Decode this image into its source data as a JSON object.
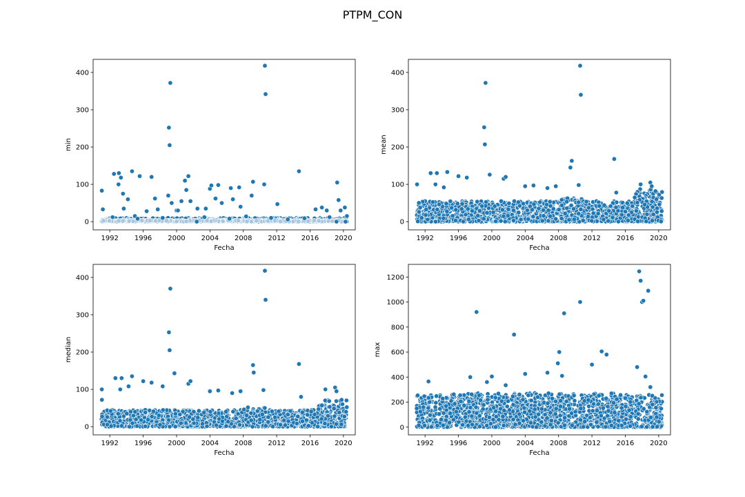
{
  "figure": {
    "title": "PTPM_CON"
  },
  "colors": {
    "point": "#1f77b4",
    "point_edge": "#ffffff",
    "axes": "#000000",
    "background": "#ffffff"
  },
  "chart_data": [
    {
      "type": "scatter",
      "xlabel": "Fecha",
      "ylabel": "min",
      "xlim": [
        "1990-01-01",
        "2021-06-01"
      ],
      "ylim": [
        -22,
        435
      ],
      "xticks": [
        "1992",
        "1996",
        "2000",
        "2004",
        "2008",
        "2012",
        "2016",
        "2020"
      ],
      "yticks": [
        0,
        100,
        200,
        300,
        400
      ],
      "grid": false,
      "series": [
        {
          "points": [
            [
              "1991-01-15",
              83
            ],
            [
              "1991-03-01",
              33
            ],
            [
              "1992-07-01",
              128
            ],
            [
              "1993-02-01",
              130
            ],
            [
              "1993-05-01",
              118
            ],
            [
              "1993-01-15",
              100
            ],
            [
              "1993-08-01",
              75
            ],
            [
              "1993-09-01",
              35
            ],
            [
              "1994-03-01",
              60
            ],
            [
              "1994-09-01",
              135
            ],
            [
              "1995-01-01",
              15
            ],
            [
              "1995-08-01",
              122
            ],
            [
              "1996-06-01",
              28
            ],
            [
              "1997-01-01",
              120
            ],
            [
              "1997-06-01",
              62
            ],
            [
              "1997-10-01",
              33
            ],
            [
              "1999-01-01",
              70
            ],
            [
              "1999-02-01",
              252
            ],
            [
              "1999-03-01",
              205
            ],
            [
              "1999-04-01",
              372
            ],
            [
              "1999-06-01",
              50
            ],
            [
              "2000-01-01",
              30
            ],
            [
              "2000-03-01",
              30
            ],
            [
              "2000-08-01",
              55
            ],
            [
              "2001-01-01",
              110
            ],
            [
              "2001-03-01",
              85
            ],
            [
              "2001-06-01",
              122
            ],
            [
              "2001-09-01",
              55
            ],
            [
              "2002-07-01",
              35
            ],
            [
              "2003-07-01",
              35
            ],
            [
              "2004-01-01",
              88
            ],
            [
              "2004-03-01",
              97
            ],
            [
              "2004-09-01",
              62
            ],
            [
              "2005-01-01",
              98
            ],
            [
              "2005-06-01",
              50
            ],
            [
              "2006-07-01",
              90
            ],
            [
              "2006-10-01",
              60
            ],
            [
              "2007-07-01",
              92
            ],
            [
              "2007-09-01",
              40
            ],
            [
              "2009-01-01",
              70
            ],
            [
              "2009-03-01",
              107
            ],
            [
              "2010-07-01",
              100
            ],
            [
              "2010-08-01",
              418
            ],
            [
              "2010-09-01",
              342
            ],
            [
              "2012-02-01",
              47
            ],
            [
              "2014-09-01",
              135
            ],
            [
              "2016-09-01",
              33
            ],
            [
              "2017-06-01",
              38
            ],
            [
              "2018-01-01",
              30
            ],
            [
              "2019-04-01",
              105
            ],
            [
              "2019-06-01",
              58
            ],
            [
              "2019-09-01",
              30
            ],
            [
              "2020-03-01",
              38
            ],
            [
              "2020-06-01",
              15
            ],
            [
              "2002-06-01",
              0
            ],
            [
              "2019-03-01",
              0
            ],
            [
              "2020-04-01",
              0
            ],
            [
              "1992-05-01",
              12
            ],
            [
              "1995-05-01",
              8
            ],
            [
              "1998-05-01",
              10
            ],
            [
              "2003-05-01",
              12
            ],
            [
              "2006-05-01",
              8
            ],
            [
              "2008-05-01",
              14
            ],
            [
              "2011-05-01",
              10
            ],
            [
              "2013-05-01",
              6
            ],
            [
              "2015-05-01",
              9
            ],
            [
              "2018-05-01",
              12
            ]
          ]
        }
      ]
    },
    {
      "type": "scatter",
      "xlabel": "Fecha",
      "ylabel": "mean",
      "xlim": [
        "1990-01-01",
        "2021-06-01"
      ],
      "ylim": [
        -22,
        435
      ],
      "xticks": [
        "1992",
        "1996",
        "2000",
        "2004",
        "2008",
        "2012",
        "2016",
        "2020"
      ],
      "yticks": [
        0,
        100,
        200,
        300,
        400
      ],
      "grid": false,
      "series": [
        {
          "points": [
            [
              "1991-01-15",
              100
            ],
            [
              "1992-09-01",
              130
            ],
            [
              "1993-04-01",
              100
            ],
            [
              "1993-06-01",
              130
            ],
            [
              "1994-04-01",
              92
            ],
            [
              "1994-09-01",
              133
            ],
            [
              "1996-01-01",
              122
            ],
            [
              "1997-01-01",
              118
            ],
            [
              "1999-02-01",
              253
            ],
            [
              "1999-03-01",
              207
            ],
            [
              "1999-04-01",
              372
            ],
            [
              "1999-10-01",
              126
            ],
            [
              "2001-06-01",
              115
            ],
            [
              "2001-09-01",
              120
            ],
            [
              "2004-01-01",
              95
            ],
            [
              "2005-01-01",
              97
            ],
            [
              "2006-09-01",
              90
            ],
            [
              "2007-09-01",
              95
            ],
            [
              "2009-06-01",
              145
            ],
            [
              "2009-08-01",
              163
            ],
            [
              "2010-08-01",
              418
            ],
            [
              "2010-09-01",
              340
            ],
            [
              "2010-06-01",
              98
            ],
            [
              "2014-09-01",
              168
            ],
            [
              "2014-12-01",
              78
            ],
            [
              "2017-11-01",
              100
            ],
            [
              "2019-01-01",
              105
            ],
            [
              "2019-03-01",
              95
            ]
          ]
        }
      ]
    },
    {
      "type": "scatter",
      "xlabel": "Fecha",
      "ylabel": "median",
      "xlim": [
        "1990-01-01",
        "2021-06-01"
      ],
      "ylim": [
        -22,
        435
      ],
      "xticks": [
        "1992",
        "1996",
        "2000",
        "2004",
        "2008",
        "2012",
        "2016",
        "2020"
      ],
      "yticks": [
        0,
        100,
        200,
        300,
        400
      ],
      "grid": false,
      "series": [
        {
          "points": [
            [
              "1991-01-15",
              100
            ],
            [
              "1991-01-20",
              72
            ],
            [
              "1992-09-01",
              130
            ],
            [
              "1993-04-01",
              100
            ],
            [
              "1993-06-01",
              130
            ],
            [
              "1994-04-01",
              108
            ],
            [
              "1994-09-01",
              135
            ],
            [
              "1996-01-01",
              122
            ],
            [
              "1997-01-01",
              118
            ],
            [
              "1998-05-01",
              108
            ],
            [
              "1999-02-01",
              253
            ],
            [
              "1999-03-01",
              205
            ],
            [
              "1999-04-01",
              370
            ],
            [
              "1999-10-01",
              143
            ],
            [
              "2001-06-01",
              115
            ],
            [
              "2001-09-01",
              122
            ],
            [
              "2004-01-01",
              95
            ],
            [
              "2005-01-01",
              97
            ],
            [
              "2006-09-01",
              90
            ],
            [
              "2007-09-01",
              95
            ],
            [
              "2009-03-01",
              165
            ],
            [
              "2009-04-01",
              145
            ],
            [
              "2010-08-01",
              418
            ],
            [
              "2010-09-01",
              340
            ],
            [
              "2010-06-01",
              98
            ],
            [
              "2014-09-01",
              168
            ],
            [
              "2014-12-01",
              80
            ],
            [
              "2017-11-01",
              100
            ],
            [
              "2019-01-01",
              105
            ],
            [
              "2019-03-01",
              95
            ]
          ]
        }
      ]
    },
    {
      "type": "scatter",
      "xlabel": "Fecha",
      "ylabel": "max",
      "xlim": [
        "1990-01-01",
        "2021-06-01"
      ],
      "ylim": [
        -62,
        1301
      ],
      "xticks": [
        "1992",
        "1996",
        "2000",
        "2004",
        "2008",
        "2012",
        "2016",
        "2020"
      ],
      "yticks": [
        0,
        200,
        400,
        600,
        800,
        1000,
        1200
      ],
      "grid": false,
      "series": [
        {
          "points": [
            [
              "1992-06-01",
              365
            ],
            [
              "1997-06-01",
              400
            ],
            [
              "1998-03-01",
              920
            ],
            [
              "1999-06-01",
              360
            ],
            [
              "2000-01-01",
              405
            ],
            [
              "2001-09-01",
              335
            ],
            [
              "2002-09-01",
              740
            ],
            [
              "2004-01-01",
              425
            ],
            [
              "2006-09-01",
              435
            ],
            [
              "2007-12-01",
              510
            ],
            [
              "2008-02-01",
              600
            ],
            [
              "2008-06-01",
              410
            ],
            [
              "2008-09-01",
              910
            ],
            [
              "2010-08-01",
              1000
            ],
            [
              "2012-01-01",
              500
            ],
            [
              "2013-03-01",
              605
            ],
            [
              "2013-10-01",
              580
            ],
            [
              "2017-06-01",
              480
            ],
            [
              "2017-09-01",
              1245
            ],
            [
              "2017-11-01",
              1170
            ],
            [
              "2018-01-01",
              1000
            ],
            [
              "2018-03-01",
              1010
            ],
            [
              "2018-10-01",
              1090
            ],
            [
              "2019-01-01",
              320
            ],
            [
              "2018-06-01",
              405
            ]
          ]
        }
      ]
    }
  ]
}
